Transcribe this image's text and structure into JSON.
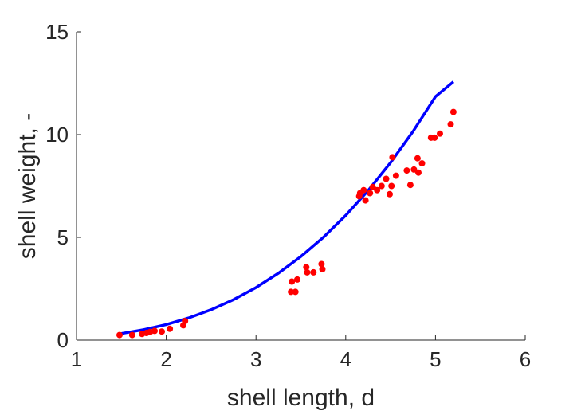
{
  "chart_data": {
    "type": "scatter",
    "title": "",
    "xlabel": "shell length, d",
    "ylabel": "shell weight, -",
    "xlim": [
      1,
      6
    ],
    "ylim": [
      0,
      15
    ],
    "xticks": [
      1,
      2,
      3,
      4,
      5,
      6
    ],
    "yticks": [
      0,
      5,
      10,
      15
    ],
    "xtick_labels": [
      "1",
      "2",
      "3",
      "4",
      "5",
      "6"
    ],
    "ytick_labels": [
      "0",
      "5",
      "10",
      "15"
    ],
    "grid": false,
    "legend": "none",
    "series": [
      {
        "kind": "scatter",
        "color": "#ff0000",
        "x": [
          1.48,
          1.62,
          1.73,
          1.78,
          1.82,
          1.87,
          1.95,
          2.04,
          2.19,
          2.21,
          3.39,
          3.4,
          3.44,
          3.46,
          3.56,
          3.57,
          3.64,
          3.73,
          3.74,
          4.15,
          4.16,
          4.2,
          4.22,
          4.27,
          4.3,
          4.35,
          4.4,
          4.45,
          4.49,
          4.51,
          4.52,
          4.56,
          4.68,
          4.72,
          4.76,
          4.8,
          4.81,
          4.85,
          4.95,
          4.99,
          5.05,
          5.17,
          5.2
        ],
        "y": [
          0.25,
          0.25,
          0.3,
          0.35,
          0.4,
          0.45,
          0.42,
          0.55,
          0.72,
          0.93,
          2.35,
          2.85,
          2.35,
          2.95,
          3.55,
          3.3,
          3.3,
          3.7,
          3.45,
          7.0,
          7.15,
          7.3,
          6.8,
          7.15,
          7.45,
          7.3,
          7.5,
          7.85,
          7.1,
          7.5,
          8.9,
          8.0,
          8.25,
          7.55,
          8.3,
          8.85,
          8.15,
          8.6,
          9.85,
          9.85,
          10.05,
          10.5,
          11.1
        ]
      },
      {
        "kind": "line",
        "color": "#0000ff",
        "x": [
          1.5,
          1.75,
          2.0,
          2.25,
          2.5,
          2.75,
          3.0,
          3.25,
          3.5,
          3.75,
          4.0,
          4.25,
          4.5,
          4.75,
          5.0,
          5.2
        ],
        "y": [
          0.32,
          0.51,
          0.76,
          1.08,
          1.48,
          1.97,
          2.56,
          3.26,
          4.07,
          5.0,
          6.07,
          7.28,
          8.64,
          10.16,
          11.85,
          12.57
        ]
      }
    ]
  }
}
